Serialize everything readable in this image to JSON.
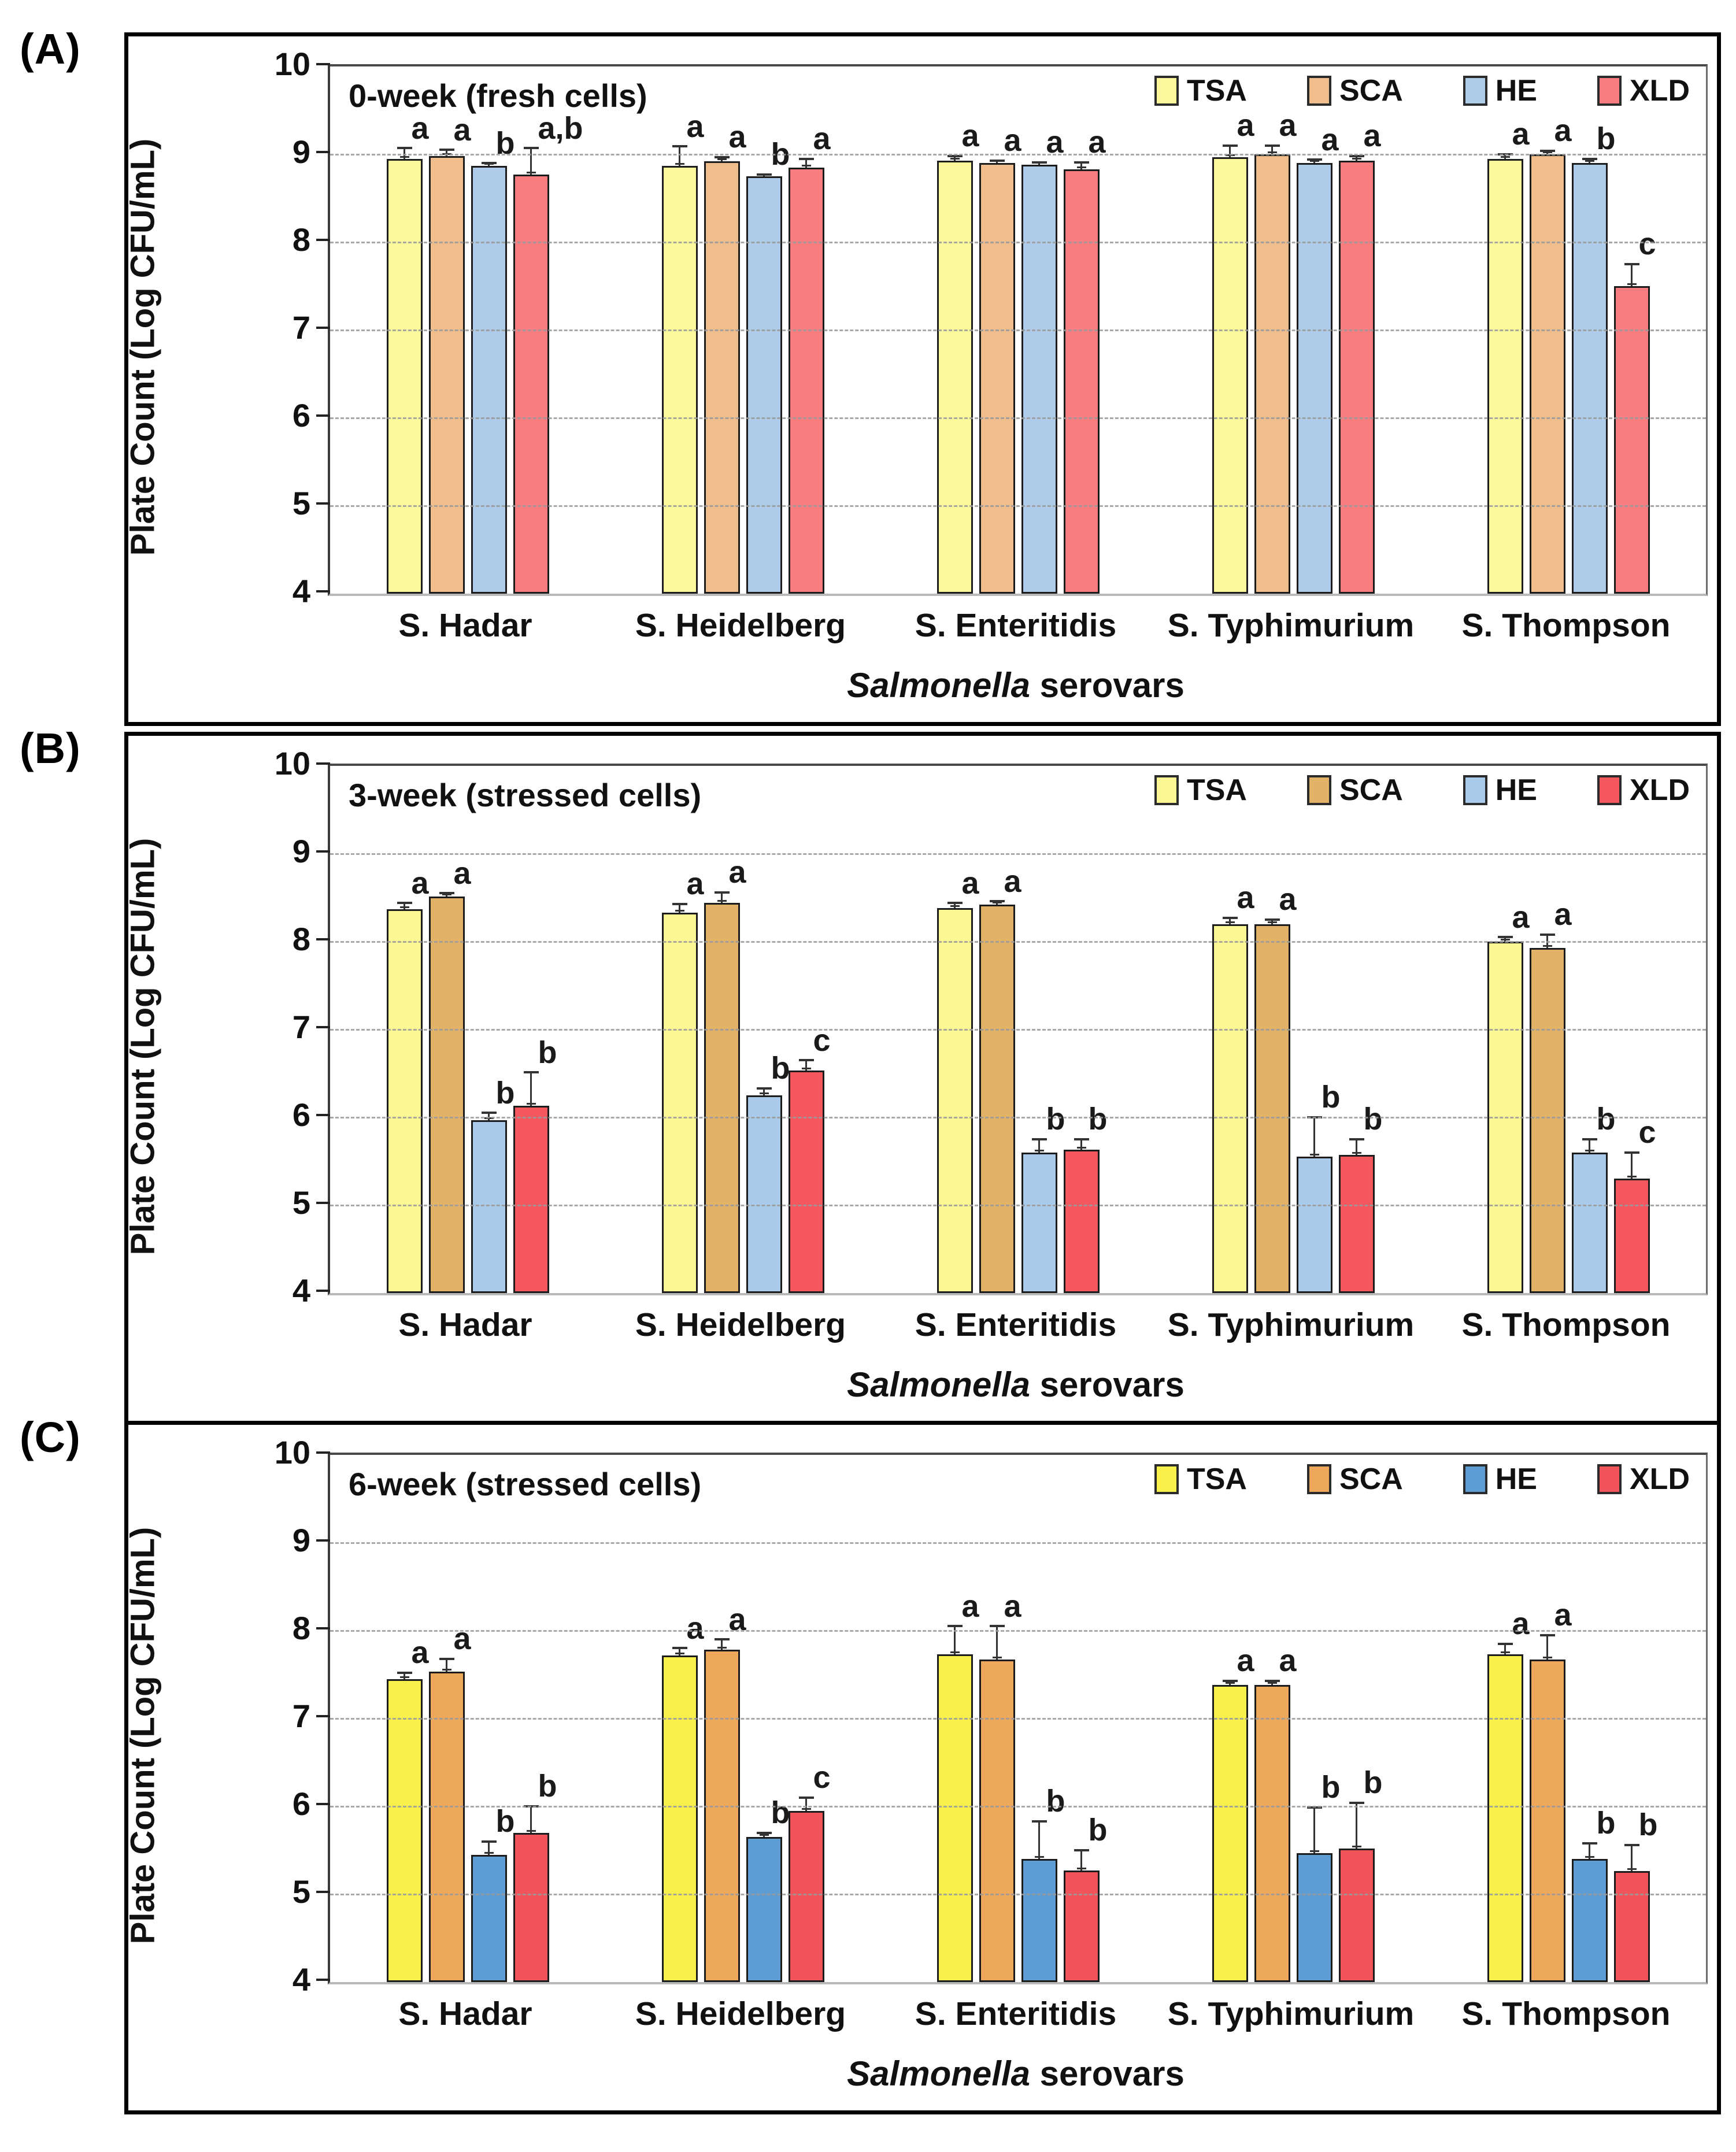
{
  "chart_data": [
    {
      "type": "bar",
      "panel_label": "(A)",
      "title": "0-week (fresh cells)",
      "ylabel": "Plate Count  (Log CFU/mL)",
      "xlabel_italic": "Salmonella",
      "xlabel_rest": " serovars",
      "ylim": [
        4,
        10
      ],
      "yticks": [
        10,
        9,
        8,
        7,
        6,
        5,
        4
      ],
      "grid": "horizontal dashed at 5-9",
      "legend_position": "top-right",
      "categories": [
        "S. Hadar",
        "S. Heidelberg",
        "S. Enteritidis",
        "S. Typhimurium",
        "S. Thompson"
      ],
      "series": [
        {
          "name": "TSA",
          "color": "#FBF99C",
          "values": [
            8.95,
            8.87,
            8.93,
            8.97,
            8.95
          ],
          "errors": [
            0.12,
            0.22,
            0.05,
            0.13,
            0.05
          ],
          "letters": [
            "a",
            "a",
            "a",
            "a",
            "a"
          ]
        },
        {
          "name": "SCA",
          "color": "#EFBE8C",
          "values": [
            8.98,
            8.92,
            8.9,
            9.0,
            9.0
          ],
          "errors": [
            0.07,
            0.05,
            0.03,
            0.1,
            0.04
          ],
          "letters": [
            "a",
            "a",
            "a",
            "a",
            "a"
          ]
        },
        {
          "name": "HE",
          "color": "#AECBE9",
          "values": [
            8.87,
            8.75,
            8.88,
            8.9,
            8.9
          ],
          "errors": [
            0.03,
            0.02,
            0.03,
            0.04,
            0.05
          ],
          "letters": [
            "b",
            "b",
            "a",
            "a",
            "b"
          ]
        },
        {
          "name": "XLD",
          "color": "#F87D80",
          "values": [
            8.77,
            8.85,
            8.83,
            8.93,
            7.5
          ],
          "errors": [
            0.3,
            0.1,
            0.08,
            0.05,
            0.25
          ],
          "letters": [
            "a,b",
            "a",
            "a",
            "a",
            "c"
          ]
        }
      ]
    },
    {
      "type": "bar",
      "panel_label": "(B)",
      "title": "3-week (stressed cells)",
      "ylabel": "Plate Count  (Log CFU/mL)",
      "xlabel_italic": "Salmonella",
      "xlabel_rest": " serovars",
      "ylim": [
        4,
        10
      ],
      "yticks": [
        10,
        9,
        8,
        7,
        6,
        5,
        4
      ],
      "grid": "horizontal dashed at 5-9",
      "legend_position": "top-right",
      "categories": [
        "S. Hadar",
        "S. Heidelberg",
        "S. Enteritidis",
        "S. Typhimurium",
        "S. Thompson"
      ],
      "series": [
        {
          "name": "TSA",
          "color": "#FAF794",
          "values": [
            8.37,
            8.33,
            8.38,
            8.2,
            8.0
          ],
          "errors": [
            0.07,
            0.1,
            0.06,
            0.07,
            0.05
          ],
          "letters": [
            "a",
            "a",
            "a",
            "a",
            "a"
          ]
        },
        {
          "name": "SCA",
          "color": "#E2B269",
          "values": [
            8.51,
            8.44,
            8.42,
            8.2,
            7.93
          ],
          "errors": [
            0.04,
            0.12,
            0.04,
            0.05,
            0.15
          ],
          "letters": [
            "a",
            "a",
            "a",
            "a",
            "a"
          ]
        },
        {
          "name": "HE",
          "color": "#A9CAE8",
          "values": [
            5.97,
            6.25,
            5.6,
            5.55,
            5.6
          ],
          "errors": [
            0.08,
            0.08,
            0.15,
            0.45,
            0.15
          ],
          "letters": [
            "b",
            "b",
            "b",
            "b",
            "b"
          ]
        },
        {
          "name": "XLD",
          "color": "#F4575E",
          "values": [
            6.13,
            6.53,
            5.63,
            5.57,
            5.3
          ],
          "errors": [
            0.38,
            0.12,
            0.12,
            0.18,
            0.3
          ],
          "letters": [
            "b",
            "c",
            "b",
            "b",
            "c"
          ]
        }
      ]
    },
    {
      "type": "bar",
      "panel_label": "(C)",
      "title": "6-week (stressed cells)",
      "ylabel": "Plate Count  (Log CFU/mL)",
      "xlabel_italic": "Salmonella",
      "xlabel_rest": " serovars",
      "ylim": [
        4,
        10
      ],
      "yticks": [
        10,
        9,
        8,
        7,
        6,
        5,
        4
      ],
      "grid": "horizontal dashed at 5-9",
      "legend_position": "top-right",
      "categories": [
        "S. Hadar",
        "S. Heidelberg",
        "S. Enteritidis",
        "S. Typhimurium",
        "S. Thompson"
      ],
      "series": [
        {
          "name": "TSA",
          "color": "#F8F04B",
          "values": [
            7.45,
            7.72,
            7.73,
            7.38,
            7.73
          ],
          "errors": [
            0.07,
            0.08,
            0.32,
            0.05,
            0.12
          ],
          "letters": [
            "a",
            "a",
            "a",
            "a",
            "a"
          ]
        },
        {
          "name": "SCA",
          "color": "#EEA85C",
          "values": [
            7.53,
            7.78,
            7.67,
            7.38,
            7.67
          ],
          "errors": [
            0.15,
            0.12,
            0.38,
            0.05,
            0.28
          ],
          "letters": [
            "a",
            "a",
            "a",
            "a",
            "a"
          ]
        },
        {
          "name": "HE",
          "color": "#5E9CD4",
          "values": [
            5.45,
            5.65,
            5.4,
            5.47,
            5.4
          ],
          "errors": [
            0.15,
            0.05,
            0.43,
            0.52,
            0.18
          ],
          "letters": [
            "b",
            "b",
            "b",
            "b",
            "b"
          ]
        },
        {
          "name": "XLD",
          "color": "#F2545B",
          "values": [
            5.7,
            5.95,
            5.27,
            5.52,
            5.26
          ],
          "errors": [
            0.3,
            0.15,
            0.23,
            0.52,
            0.3
          ],
          "letters": [
            "b",
            "c",
            "b",
            "b",
            "b"
          ]
        }
      ]
    }
  ]
}
